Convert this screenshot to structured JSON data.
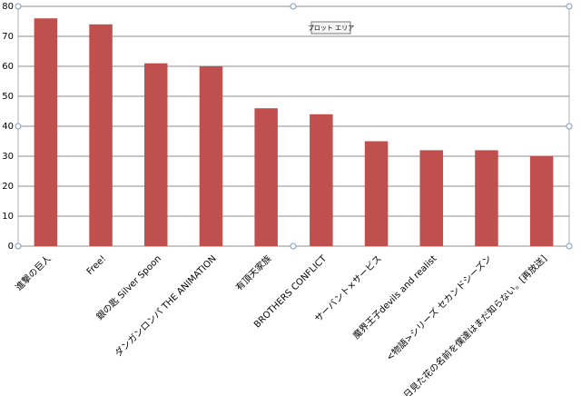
{
  "chart_data": {
    "type": "bar",
    "annotation": "プロット エリア",
    "categories": [
      "進撃の巨人",
      "Free!",
      "銀の匙 Silver Spoon",
      "ダンガンロンパ THE ANIMATION",
      "有頂天家族",
      "BROTHERS CONFLICT",
      "サーバント×サービス",
      "魔界王子devils and realist",
      "<物語>シリーズ セカンドシーズン",
      "あの日見た花の名前を僕達はまだ知らない。[再放送]"
    ],
    "values": [
      76,
      74,
      61,
      60,
      46,
      44,
      35,
      32,
      32,
      30
    ],
    "color": "#c0504d",
    "ylim": [
      0,
      80
    ],
    "yticks": [
      0,
      10,
      20,
      30,
      40,
      50,
      60,
      70,
      80
    ],
    "grid": true
  }
}
